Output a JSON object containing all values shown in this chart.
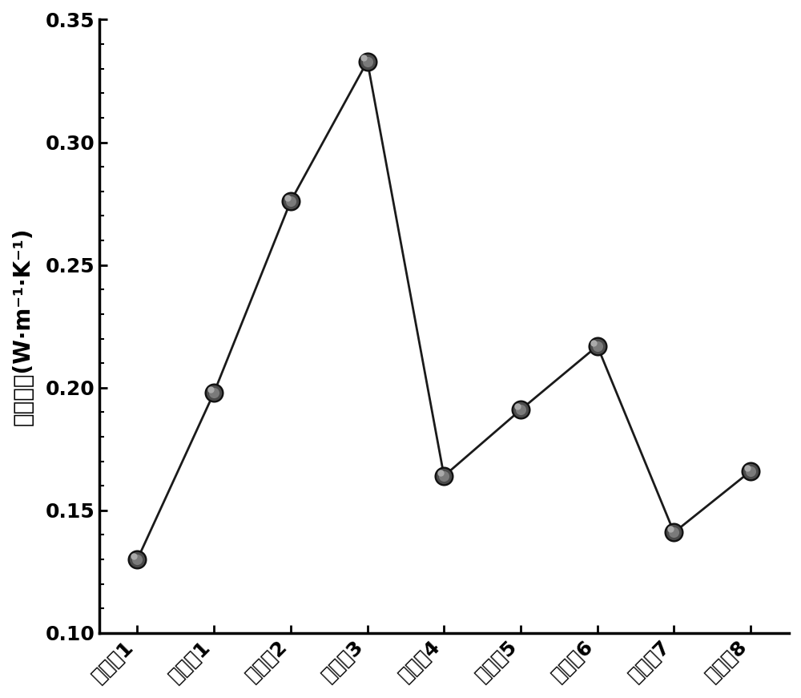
{
  "categories": [
    "对比例1",
    "实施例1",
    "实施例2",
    "实施例3",
    "实施例4",
    "实施例5",
    "实施例6",
    "实施例7",
    "实施例8"
  ],
  "values": [
    0.13,
    0.198,
    0.276,
    0.333,
    0.164,
    0.191,
    0.217,
    0.141,
    0.166
  ],
  "ylabel": "导热系数(W·m⁻¹·K⁻¹)",
  "ylim": [
    0.1,
    0.35
  ],
  "yticks": [
    0.1,
    0.15,
    0.2,
    0.25,
    0.3,
    0.35
  ],
  "line_color": "#1a1a1a",
  "line_width": 2.0,
  "background_color": "#ffffff",
  "tick_fontsize": 18,
  "ylabel_fontsize": 20,
  "marker_size_pts": 180,
  "spine_linewidth": 2.5
}
